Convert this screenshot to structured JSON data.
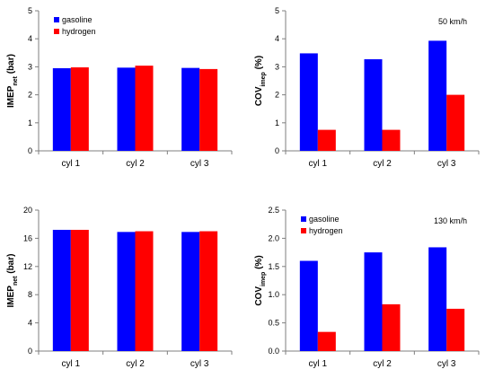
{
  "chart_data": [
    {
      "type": "bar",
      "categories": [
        "cyl 1",
        "cyl 2",
        "cyl 3"
      ],
      "series": [
        {
          "name": "gasoline",
          "values": [
            2.95,
            2.97,
            2.96
          ]
        },
        {
          "name": "hydrogen",
          "values": [
            2.98,
            3.04,
            2.92
          ]
        }
      ],
      "ylabel_main": "IMEP",
      "ylabel_sub": "net",
      "ylabel_tail": " (bar)",
      "ylim": [
        0,
        5
      ],
      "ytick_step": 1,
      "yticks": [
        "0",
        "1",
        "2",
        "3",
        "4",
        "5"
      ],
      "legend_position": "top-left",
      "show_legend": true,
      "annotation": ""
    },
    {
      "type": "bar",
      "categories": [
        "cyl 1",
        "cyl 2",
        "cyl 3"
      ],
      "series": [
        {
          "name": "gasoline",
          "values": [
            3.48,
            3.27,
            3.93
          ]
        },
        {
          "name": "hydrogen",
          "values": [
            0.75,
            0.75,
            2.0
          ]
        }
      ],
      "ylabel_main": "COV",
      "ylabel_sub": "imep",
      "ylabel_tail": " (%)",
      "ylim": [
        0,
        5
      ],
      "ytick_step": 1,
      "yticks": [
        "0",
        "1",
        "2",
        "3",
        "4",
        "5"
      ],
      "legend_position": "none",
      "show_legend": false,
      "annotation": "50 km/h"
    },
    {
      "type": "bar",
      "categories": [
        "cyl 1",
        "cyl 2",
        "cyl 3"
      ],
      "series": [
        {
          "name": "gasoline",
          "values": [
            17.2,
            16.9,
            16.9
          ]
        },
        {
          "name": "hydrogen",
          "values": [
            17.2,
            17.0,
            17.0
          ]
        }
      ],
      "ylabel_main": "IMEP",
      "ylabel_sub": "net",
      "ylabel_tail": " (bar)",
      "ylim": [
        0,
        20
      ],
      "ytick_step": 4,
      "yticks": [
        "0",
        "4",
        "8",
        "12",
        "16",
        "20"
      ],
      "legend_position": "none",
      "show_legend": false,
      "annotation": ""
    },
    {
      "type": "bar",
      "categories": [
        "cyl 1",
        "cyl 2",
        "cyl 3"
      ],
      "series": [
        {
          "name": "gasoline",
          "values": [
            1.6,
            1.75,
            1.84
          ]
        },
        {
          "name": "hydrogen",
          "values": [
            0.34,
            0.83,
            0.75
          ]
        }
      ],
      "ylabel_main": "COV",
      "ylabel_sub": "imep",
      "ylabel_tail": " (%)",
      "ylim": [
        0,
        2.5
      ],
      "ytick_step": 0.5,
      "yticks": [
        "0.0",
        "0.5",
        "1.0",
        "1.5",
        "2.0",
        "2.5"
      ],
      "legend_position": "top-left",
      "show_legend": true,
      "annotation": "130 km/h"
    }
  ],
  "colors": {
    "gasoline": "#0000FF",
    "hydrogen": "#FF0000",
    "axis": "#7f7f7f",
    "frame": "#bfbfbf"
  }
}
